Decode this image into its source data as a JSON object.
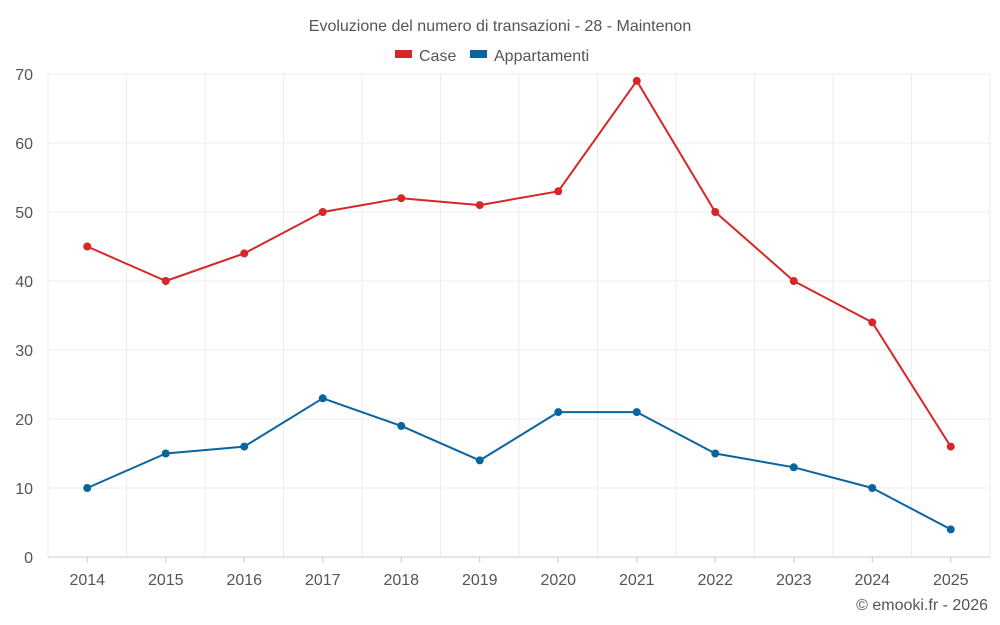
{
  "chart_data": {
    "type": "line",
    "title": "Evoluzione del numero di transazioni - 28 - Maintenon",
    "categories": [
      "2014",
      "2015",
      "2016",
      "2017",
      "2018",
      "2019",
      "2020",
      "2021",
      "2022",
      "2023",
      "2024",
      "2025"
    ],
    "ylim": [
      0,
      70
    ],
    "yticks": [
      0,
      10,
      20,
      30,
      40,
      50,
      60,
      70
    ],
    "grid": true,
    "legend_position": "top-center",
    "series": [
      {
        "name": "Case",
        "color": "#d62728",
        "values": [
          45,
          40,
          44,
          50,
          52,
          51,
          53,
          69,
          50,
          40,
          34,
          16
        ]
      },
      {
        "name": "Appartamenti",
        "color": "#0a64a0",
        "values": [
          10,
          15,
          16,
          23,
          19,
          14,
          21,
          21,
          15,
          13,
          10,
          4
        ]
      }
    ],
    "credit": "© emooki.fr - 2026"
  }
}
